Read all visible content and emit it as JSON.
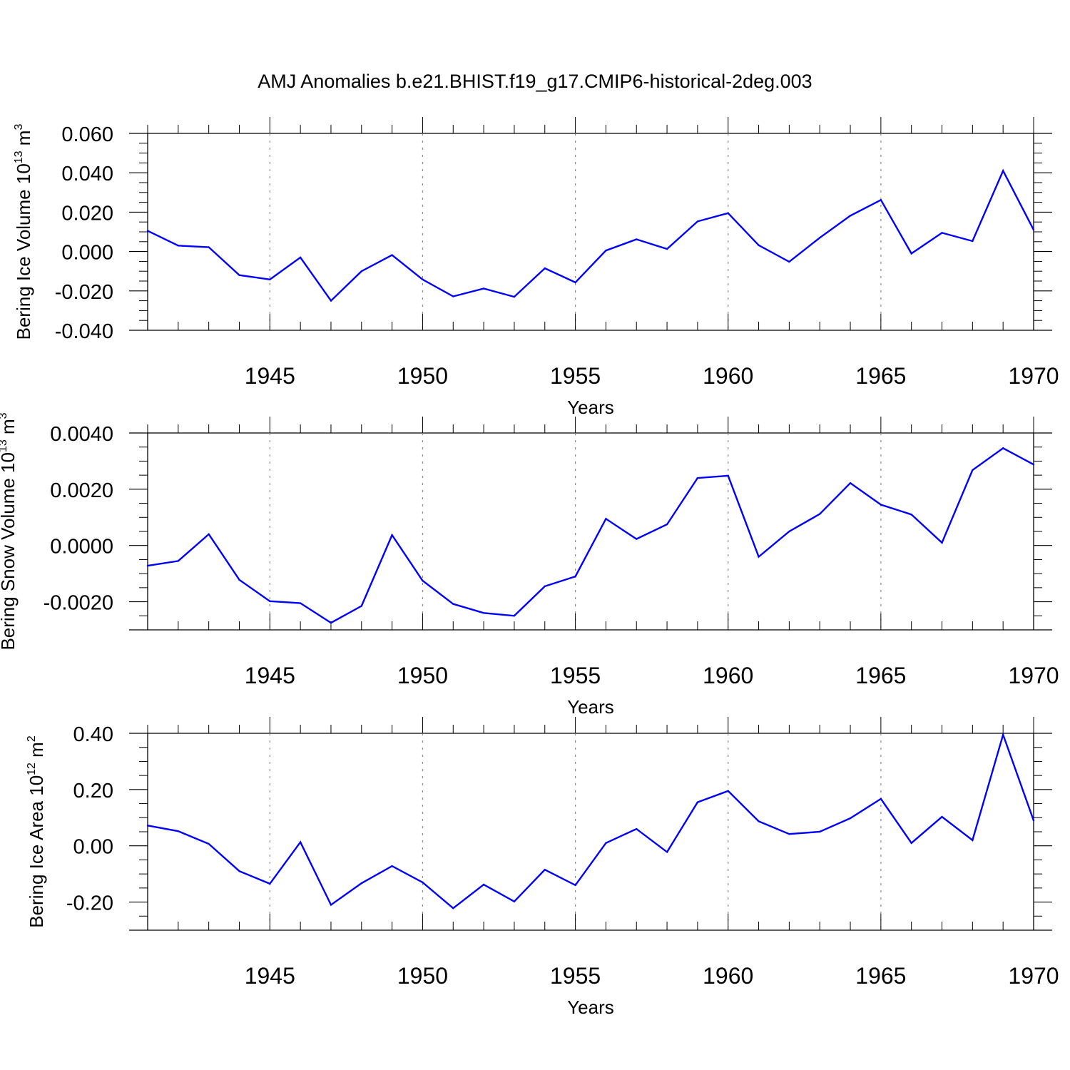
{
  "figure_title": "AMJ Anomalies b.e21.BHIST.f19_g17.CMIP6-historical-2deg.003",
  "colors": {
    "line": "#0000ff",
    "axis": "#000000",
    "grid": "#8a8a8a",
    "background": "#ffffff"
  },
  "chart_data": [
    {
      "type": "line",
      "title": "AMJ Anomalies b.e21.BHIST.f19_g17.CMIP6-historical-2deg.003",
      "ylabel": {
        "text": "Bering Ice Volume 10",
        "power": "13",
        "unit": "m",
        "unit_power": "3"
      },
      "xlabel": "Years",
      "xlim": [
        1941,
        1970
      ],
      "ylim": [
        -0.04,
        0.06
      ],
      "x_ticks": [
        1945,
        1950,
        1955,
        1960,
        1965,
        1970
      ],
      "x_tick_labels": [
        "1945",
        "1950",
        "1955",
        "1960",
        "1965",
        "1970"
      ],
      "y_ticks": [
        -0.04,
        -0.02,
        0.0,
        0.02,
        0.04,
        0.06
      ],
      "y_tick_labels": [
        "-0.040",
        "-0.020",
        "0.000",
        "0.020",
        "0.040",
        "0.060"
      ],
      "y_minor_step": 0.005,
      "grid": "vertical dashed at major x ticks",
      "series": [
        {
          "name": "Bering Ice Volume",
          "x": [
            1941,
            1942,
            1943,
            1944,
            1945,
            1946,
            1947,
            1948,
            1949,
            1950,
            1951,
            1952,
            1953,
            1954,
            1955,
            1956,
            1957,
            1958,
            1959,
            1960,
            1961,
            1962,
            1963,
            1964,
            1965,
            1966,
            1967,
            1968,
            1969,
            1970
          ],
          "values": [
            0.0105,
            0.003,
            0.0022,
            -0.012,
            -0.0142,
            -0.003,
            -0.025,
            -0.01,
            -0.0018,
            -0.0142,
            -0.0228,
            -0.0188,
            -0.023,
            -0.0085,
            -0.0157,
            0.0005,
            0.0062,
            0.0013,
            0.0153,
            0.0195,
            0.0032,
            -0.0052,
            0.007,
            0.0182,
            0.0262,
            -0.001,
            0.0095,
            0.0053,
            0.041,
            0.011
          ]
        }
      ]
    },
    {
      "type": "line",
      "title": "",
      "ylabel": {
        "text": "Bering Snow Volume 10",
        "power": "13",
        "unit": "m",
        "unit_power": "3"
      },
      "xlabel": "Years",
      "xlim": [
        1941,
        1970
      ],
      "ylim": [
        -0.003,
        0.004
      ],
      "x_ticks": [
        1945,
        1950,
        1955,
        1960,
        1965,
        1970
      ],
      "x_tick_labels": [
        "1945",
        "1950",
        "1955",
        "1960",
        "1965",
        "1970"
      ],
      "y_ticks": [
        -0.002,
        0.0,
        0.002,
        0.004
      ],
      "y_tick_labels": [
        "-0.0020",
        "0.0000",
        "0.0020",
        "0.0040"
      ],
      "y_minor_step": 0.0005,
      "grid": "vertical dashed at major x ticks",
      "series": [
        {
          "name": "Bering Snow Volume",
          "x": [
            1941,
            1942,
            1943,
            1944,
            1945,
            1946,
            1947,
            1948,
            1949,
            1950,
            1951,
            1952,
            1953,
            1954,
            1955,
            1956,
            1957,
            1958,
            1959,
            1960,
            1961,
            1962,
            1963,
            1964,
            1965,
            1966,
            1967,
            1968,
            1969,
            1970
          ],
          "values": [
            -0.00072,
            -0.00055,
            0.0004,
            -0.00122,
            -0.00198,
            -0.00205,
            -0.00275,
            -0.00215,
            0.00037,
            -0.00125,
            -0.00208,
            -0.0024,
            -0.0025,
            -0.00145,
            -0.0011,
            0.00095,
            0.00023,
            0.00075,
            0.0024,
            0.00248,
            -0.0004,
            0.0005,
            0.00112,
            0.00222,
            0.00145,
            0.0011,
            0.0001,
            0.00268,
            0.00346,
            0.00288
          ]
        }
      ]
    },
    {
      "type": "line",
      "title": "",
      "ylabel": {
        "text": "Bering Ice Area 10",
        "power": "12",
        "unit": "m",
        "unit_power": "2"
      },
      "xlabel": "Years",
      "xlim": [
        1941,
        1970
      ],
      "ylim": [
        -0.3,
        0.4
      ],
      "x_ticks": [
        1945,
        1950,
        1955,
        1960,
        1965,
        1970
      ],
      "x_tick_labels": [
        "1945",
        "1950",
        "1955",
        "1960",
        "1965",
        "1970"
      ],
      "y_ticks": [
        -0.2,
        0.0,
        0.2,
        0.4
      ],
      "y_tick_labels": [
        "-0.20",
        "0.00",
        "0.20",
        "0.40"
      ],
      "y_minor_step": 0.05,
      "grid": "vertical dashed at major x ticks",
      "series": [
        {
          "name": "Bering Ice Area",
          "x": [
            1941,
            1942,
            1943,
            1944,
            1945,
            1946,
            1947,
            1948,
            1949,
            1950,
            1951,
            1952,
            1953,
            1954,
            1955,
            1956,
            1957,
            1958,
            1959,
            1960,
            1961,
            1962,
            1963,
            1964,
            1965,
            1966,
            1967,
            1968,
            1969,
            1970
          ],
          "values": [
            0.072,
            0.052,
            0.007,
            -0.09,
            -0.135,
            0.013,
            -0.21,
            -0.133,
            -0.072,
            -0.13,
            -0.222,
            -0.138,
            -0.198,
            -0.085,
            -0.14,
            0.01,
            0.06,
            -0.022,
            0.155,
            0.195,
            0.087,
            0.042,
            0.05,
            0.098,
            0.167,
            0.01,
            0.103,
            0.02,
            0.395,
            0.09
          ]
        }
      ]
    }
  ]
}
